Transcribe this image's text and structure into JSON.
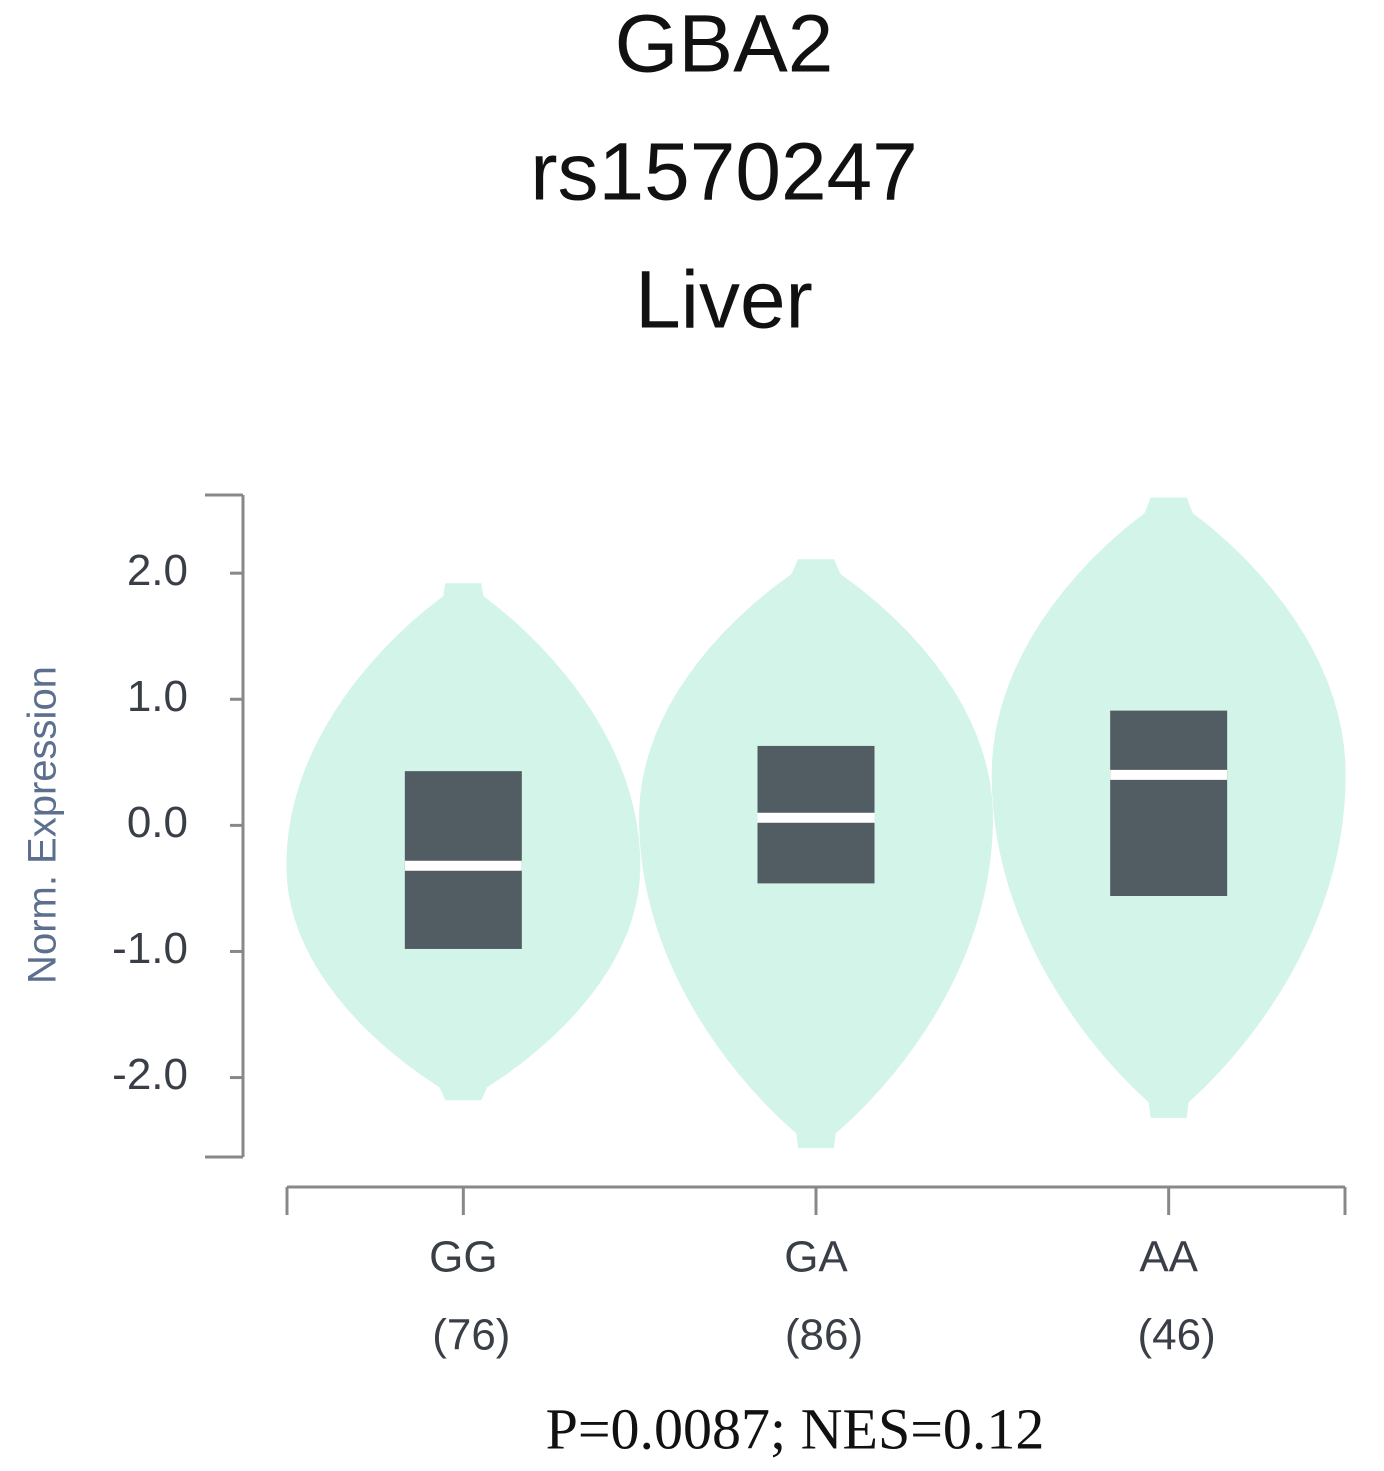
{
  "chart_data": {
    "type": "violin",
    "title": [
      "GBA2",
      "rs1570247",
      "Liver"
    ],
    "y_label": "Norm. Expression",
    "annotation": "P=0.0087; NES=0.12",
    "categories": [
      "GG",
      "GA",
      "AA"
    ],
    "sample_sizes": [
      76,
      86,
      46
    ],
    "sample_size_labels": [
      "(76)",
      "(86)",
      "(46)"
    ],
    "min": [
      -2.18,
      -2.56,
      -2.32
    ],
    "max": [
      1.92,
      2.11,
      2.6
    ],
    "q1": [
      -0.98,
      -0.46,
      -0.56
    ],
    "median": [
      -0.32,
      0.06,
      0.4
    ],
    "q3": [
      0.43,
      0.63,
      0.91
    ],
    "violin_color": "#d3f4e8",
    "box_color": "#525c63",
    "median_color": "#ffffff",
    "ylim": [
      -2.63,
      2.62
    ],
    "yticks": [
      {
        "value": 2,
        "label": "2.0"
      },
      {
        "value": 1,
        "label": "1.0"
      },
      {
        "value": 0,
        "label": "0.0"
      },
      {
        "value": -1,
        "label": "-1.0"
      },
      {
        "value": -2,
        "label": "-2.0"
      }
    ]
  }
}
